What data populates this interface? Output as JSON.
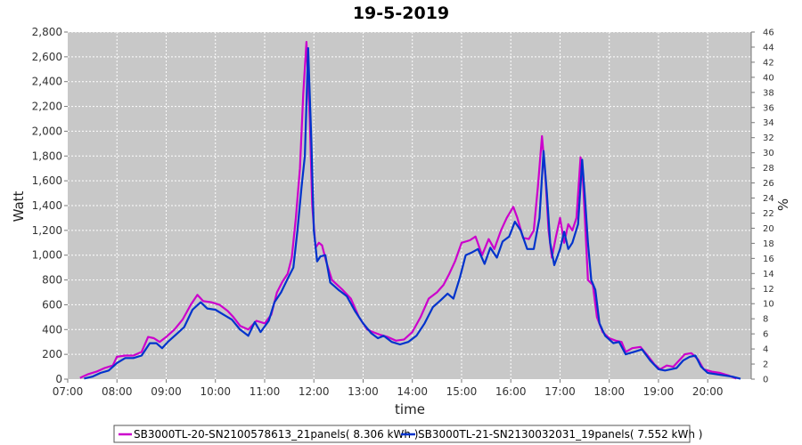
{
  "chart_data": {
    "type": "line",
    "title": "19-5-2019",
    "xlabel": "time",
    "ylabel": "Watt",
    "y2label": "%",
    "ylim": [
      0,
      2800
    ],
    "y2lim": [
      0,
      46
    ],
    "xlim": [
      "07:00",
      "20:53"
    ],
    "grid": true,
    "legend_position": "bottom",
    "x_ticks": [
      "07:00",
      "08:00",
      "09:00",
      "10:00",
      "11:00",
      "12:00",
      "13:00",
      "14:00",
      "15:00",
      "16:00",
      "17:00",
      "18:00",
      "19:00",
      "20:00"
    ],
    "y_ticks": [
      "0",
      "200",
      "400",
      "600",
      "800",
      "1,000",
      "1,200",
      "1,400",
      "1,600",
      "1,800",
      "2,000",
      "2,200",
      "2,400",
      "2,600",
      "2,800"
    ],
    "y2_ticks": [
      "0",
      "2",
      "4",
      "6",
      "8",
      "10",
      "12",
      "14",
      "16",
      "18",
      "20",
      "22",
      "24",
      "26",
      "28",
      "30",
      "32",
      "34",
      "36",
      "38",
      "40",
      "42",
      "44",
      "46"
    ],
    "series": [
      {
        "name": "SB3000TL-20-SN2100578613_21panels( 8.306 kWh )",
        "color": "#cc00cc",
        "points": [
          [
            "07:15",
            10
          ],
          [
            "07:25",
            40
          ],
          [
            "07:35",
            60
          ],
          [
            "07:45",
            90
          ],
          [
            "07:55",
            110
          ],
          [
            "08:00",
            180
          ],
          [
            "08:10",
            190
          ],
          [
            "08:20",
            190
          ],
          [
            "08:30",
            220
          ],
          [
            "08:38",
            340
          ],
          [
            "08:45",
            330
          ],
          [
            "08:52",
            300
          ],
          [
            "09:00",
            340
          ],
          [
            "09:10",
            400
          ],
          [
            "09:20",
            480
          ],
          [
            "09:30",
            600
          ],
          [
            "09:38",
            680
          ],
          [
            "09:45",
            630
          ],
          [
            "09:55",
            620
          ],
          [
            "10:05",
            600
          ],
          [
            "10:15",
            550
          ],
          [
            "10:22",
            500
          ],
          [
            "10:30",
            430
          ],
          [
            "10:40",
            400
          ],
          [
            "10:50",
            470
          ],
          [
            "11:00",
            450
          ],
          [
            "11:08",
            520
          ],
          [
            "11:15",
            700
          ],
          [
            "11:22",
            790
          ],
          [
            "11:28",
            850
          ],
          [
            "11:33",
            980
          ],
          [
            "11:38",
            1300
          ],
          [
            "11:43",
            1700
          ],
          [
            "11:47",
            2300
          ],
          [
            "11:51",
            2720
          ],
          [
            "11:55",
            2100
          ],
          [
            "11:58",
            1400
          ],
          [
            "12:02",
            1060
          ],
          [
            "12:06",
            1100
          ],
          [
            "12:10",
            1080
          ],
          [
            "12:15",
            950
          ],
          [
            "12:22",
            800
          ],
          [
            "12:35",
            720
          ],
          [
            "12:45",
            650
          ],
          [
            "12:55",
            500
          ],
          [
            "13:05",
            400
          ],
          [
            "13:12",
            380
          ],
          [
            "13:20",
            360
          ],
          [
            "13:30",
            340
          ],
          [
            "13:40",
            310
          ],
          [
            "13:50",
            320
          ],
          [
            "14:00",
            380
          ],
          [
            "14:10",
            500
          ],
          [
            "14:20",
            650
          ],
          [
            "14:30",
            700
          ],
          [
            "14:38",
            760
          ],
          [
            "14:45",
            850
          ],
          [
            "14:52",
            950
          ],
          [
            "15:00",
            1100
          ],
          [
            "15:10",
            1120
          ],
          [
            "15:17",
            1150
          ],
          [
            "15:25",
            1000
          ],
          [
            "15:33",
            1130
          ],
          [
            "15:40",
            1050
          ],
          [
            "15:48",
            1200
          ],
          [
            "15:55",
            1300
          ],
          [
            "16:03",
            1390
          ],
          [
            "16:08",
            1300
          ],
          [
            "16:15",
            1140
          ],
          [
            "16:22",
            1130
          ],
          [
            "16:28",
            1200
          ],
          [
            "16:33",
            1550
          ],
          [
            "16:38",
            1960
          ],
          [
            "16:42",
            1650
          ],
          [
            "16:46",
            1200
          ],
          [
            "16:50",
            980
          ],
          [
            "16:55",
            1150
          ],
          [
            "17:00",
            1300
          ],
          [
            "17:05",
            1100
          ],
          [
            "17:10",
            1250
          ],
          [
            "17:15",
            1200
          ],
          [
            "17:20",
            1300
          ],
          [
            "17:25",
            1790
          ],
          [
            "17:28",
            1600
          ],
          [
            "17:31",
            1200
          ],
          [
            "17:34",
            800
          ],
          [
            "17:40",
            760
          ],
          [
            "17:45",
            500
          ],
          [
            "17:52",
            380
          ],
          [
            "18:00",
            330
          ],
          [
            "18:08",
            310
          ],
          [
            "18:15",
            300
          ],
          [
            "18:20",
            220
          ],
          [
            "18:28",
            250
          ],
          [
            "18:38",
            260
          ],
          [
            "18:48",
            180
          ],
          [
            "18:55",
            120
          ],
          [
            "19:02",
            80
          ],
          [
            "19:10",
            110
          ],
          [
            "19:18",
            100
          ],
          [
            "19:25",
            150
          ],
          [
            "19:32",
            200
          ],
          [
            "19:40",
            210
          ],
          [
            "19:48",
            160
          ],
          [
            "19:55",
            80
          ],
          [
            "20:05",
            60
          ],
          [
            "20:15",
            50
          ],
          [
            "20:25",
            30
          ],
          [
            "20:35",
            5
          ]
        ]
      },
      {
        "name": "SB3000TL-21-SN2130032031_19panels( 7.552 kWh )",
        "color": "#0033cc",
        "points": [
          [
            "07:20",
            5
          ],
          [
            "07:30",
            20
          ],
          [
            "07:40",
            50
          ],
          [
            "07:50",
            70
          ],
          [
            "08:00",
            130
          ],
          [
            "08:10",
            170
          ],
          [
            "08:20",
            170
          ],
          [
            "08:30",
            190
          ],
          [
            "08:40",
            290
          ],
          [
            "08:48",
            290
          ],
          [
            "08:55",
            250
          ],
          [
            "09:02",
            300
          ],
          [
            "09:12",
            360
          ],
          [
            "09:22",
            420
          ],
          [
            "09:32",
            560
          ],
          [
            "09:42",
            620
          ],
          [
            "09:50",
            570
          ],
          [
            "10:00",
            560
          ],
          [
            "10:10",
            520
          ],
          [
            "10:20",
            480
          ],
          [
            "10:30",
            400
          ],
          [
            "10:40",
            350
          ],
          [
            "10:48",
            460
          ],
          [
            "10:55",
            380
          ],
          [
            "11:05",
            470
          ],
          [
            "11:12",
            620
          ],
          [
            "11:20",
            700
          ],
          [
            "11:28",
            810
          ],
          [
            "11:35",
            900
          ],
          [
            "11:40",
            1200
          ],
          [
            "11:45",
            1550
          ],
          [
            "11:49",
            1800
          ],
          [
            "11:53",
            2670
          ],
          [
            "11:57",
            1900
          ],
          [
            "12:00",
            1200
          ],
          [
            "12:04",
            950
          ],
          [
            "12:08",
            990
          ],
          [
            "12:14",
            1000
          ],
          [
            "12:20",
            780
          ],
          [
            "12:30",
            720
          ],
          [
            "12:40",
            670
          ],
          [
            "12:50",
            550
          ],
          [
            "13:00",
            450
          ],
          [
            "13:10",
            370
          ],
          [
            "13:18",
            330
          ],
          [
            "13:25",
            350
          ],
          [
            "13:35",
            300
          ],
          [
            "13:45",
            280
          ],
          [
            "13:55",
            300
          ],
          [
            "14:05",
            350
          ],
          [
            "14:15",
            450
          ],
          [
            "14:25",
            580
          ],
          [
            "14:35",
            640
          ],
          [
            "14:43",
            690
          ],
          [
            "14:50",
            650
          ],
          [
            "14:58",
            820
          ],
          [
            "15:05",
            1000
          ],
          [
            "15:12",
            1020
          ],
          [
            "15:20",
            1050
          ],
          [
            "15:28",
            930
          ],
          [
            "15:35",
            1060
          ],
          [
            "15:43",
            980
          ],
          [
            "15:50",
            1110
          ],
          [
            "15:58",
            1150
          ],
          [
            "16:05",
            1270
          ],
          [
            "16:12",
            1200
          ],
          [
            "16:20",
            1050
          ],
          [
            "16:28",
            1050
          ],
          [
            "16:35",
            1300
          ],
          [
            "16:40",
            1840
          ],
          [
            "16:44",
            1500
          ],
          [
            "16:48",
            1100
          ],
          [
            "16:53",
            920
          ],
          [
            "17:00",
            1050
          ],
          [
            "17:05",
            1190
          ],
          [
            "17:10",
            1050
          ],
          [
            "17:15",
            1100
          ],
          [
            "17:22",
            1250
          ],
          [
            "17:27",
            1770
          ],
          [
            "17:30",
            1500
          ],
          [
            "17:34",
            1100
          ],
          [
            "17:38",
            800
          ],
          [
            "17:43",
            720
          ],
          [
            "17:48",
            450
          ],
          [
            "17:55",
            350
          ],
          [
            "18:05",
            290
          ],
          [
            "18:12",
            300
          ],
          [
            "18:20",
            200
          ],
          [
            "18:30",
            220
          ],
          [
            "18:40",
            240
          ],
          [
            "18:50",
            150
          ],
          [
            "19:00",
            80
          ],
          [
            "19:08",
            70
          ],
          [
            "19:15",
            80
          ],
          [
            "19:22",
            90
          ],
          [
            "19:30",
            150
          ],
          [
            "19:38",
            180
          ],
          [
            "19:45",
            190
          ],
          [
            "19:52",
            100
          ],
          [
            "20:00",
            50
          ],
          [
            "20:10",
            40
          ],
          [
            "20:20",
            30
          ],
          [
            "20:30",
            20
          ],
          [
            "20:40",
            3
          ]
        ]
      }
    ]
  }
}
